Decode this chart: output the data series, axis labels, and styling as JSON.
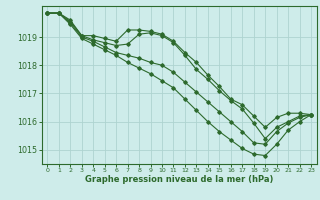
{
  "background_color": "#ceecea",
  "grid_color": "#aed4d0",
  "line_color": "#2d6a2d",
  "title": "Graphe pression niveau de la mer (hPa)",
  "xlim": [
    -0.5,
    23.5
  ],
  "ylim": [
    1014.5,
    1020.1
  ],
  "yticks": [
    1015,
    1016,
    1017,
    1018,
    1019
  ],
  "xticks": [
    0,
    1,
    2,
    3,
    4,
    5,
    6,
    7,
    8,
    9,
    10,
    11,
    12,
    13,
    14,
    15,
    16,
    17,
    18,
    19,
    20,
    21,
    22,
    23
  ],
  "series": [
    [
      1019.85,
      1019.85,
      1019.6,
      1019.05,
      1019.05,
      1018.95,
      1018.85,
      1019.25,
      1019.25,
      1019.2,
      1019.1,
      1018.85,
      1018.45,
      1018.1,
      1017.65,
      1017.25,
      1016.8,
      1016.6,
      1016.2,
      1015.8,
      1016.15,
      1016.3,
      1016.3,
      1016.25
    ],
    [
      1019.85,
      1019.85,
      1019.55,
      1019.05,
      1018.9,
      1018.8,
      1018.7,
      1018.75,
      1019.1,
      1019.15,
      1019.05,
      1018.8,
      1018.35,
      1017.85,
      1017.5,
      1017.1,
      1016.75,
      1016.45,
      1015.95,
      1015.4,
      1015.8,
      1016.0,
      1016.2,
      1016.25
    ],
    [
      1019.85,
      1019.85,
      1019.5,
      1019.0,
      1018.85,
      1018.65,
      1018.45,
      1018.35,
      1018.25,
      1018.1,
      1018.0,
      1017.75,
      1017.4,
      1017.05,
      1016.7,
      1016.35,
      1016.0,
      1015.65,
      1015.25,
      1015.2,
      1015.65,
      1015.95,
      1016.15,
      1016.25
    ],
    [
      1019.85,
      1019.85,
      1019.45,
      1018.95,
      1018.75,
      1018.55,
      1018.35,
      1018.1,
      1017.9,
      1017.7,
      1017.45,
      1017.2,
      1016.8,
      1016.4,
      1016.0,
      1015.65,
      1015.35,
      1015.05,
      1014.85,
      1014.8,
      1015.2,
      1015.7,
      1016.0,
      1016.25
    ]
  ]
}
